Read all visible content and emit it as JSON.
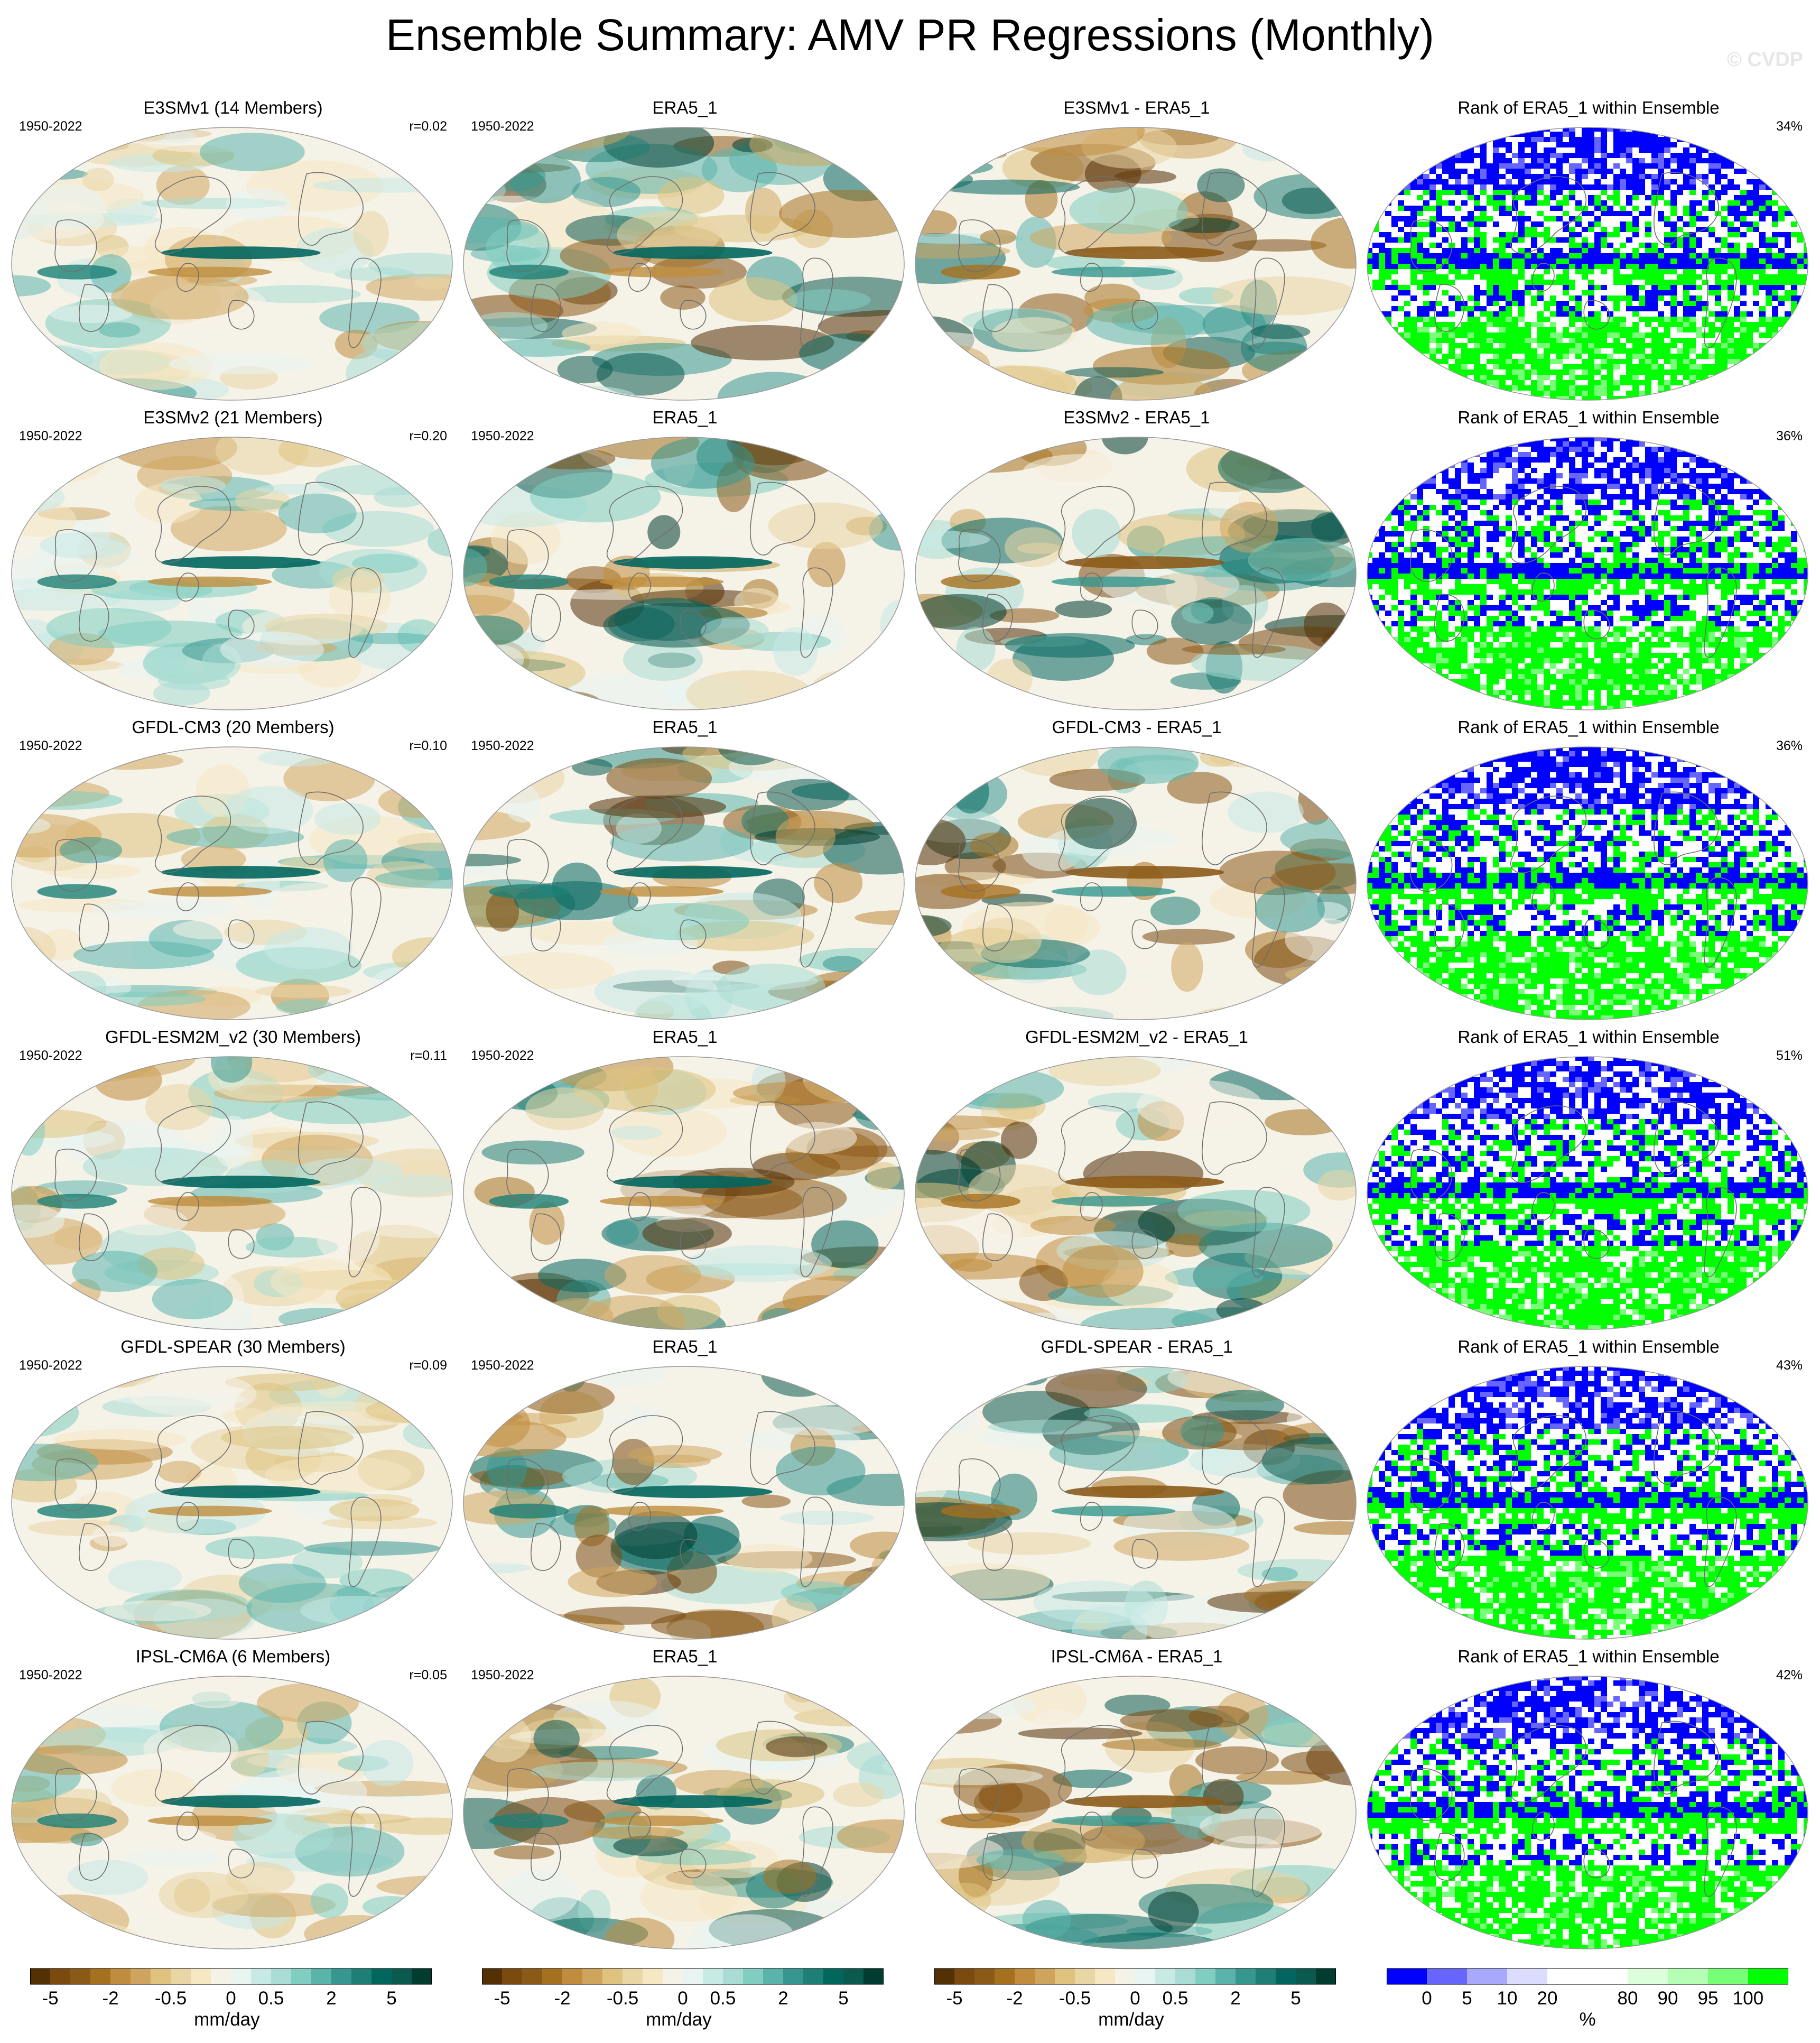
{
  "title": "Ensemble Summary: AMV PR Regressions (Monthly)",
  "watermark": "© CVDP",
  "rows": [
    {
      "model_title": "E3SMv1 (14 Members)",
      "years": "1950-2022",
      "corr": "r=0.02",
      "obs_title": "ERA5_1",
      "obs_years": "1950-2022",
      "diff_title": "E3SMv1 - ERA5_1",
      "rank_title": "Rank of ERA5_1 within Ensemble",
      "rank_pct": "34%"
    },
    {
      "model_title": "E3SMv2 (21 Members)",
      "years": "1950-2022",
      "corr": "r=0.20",
      "obs_title": "ERA5_1",
      "obs_years": "1950-2022",
      "diff_title": "E3SMv2 - ERA5_1",
      "rank_title": "Rank of ERA5_1 within Ensemble",
      "rank_pct": "36%"
    },
    {
      "model_title": "GFDL-CM3 (20 Members)",
      "years": "1950-2022",
      "corr": "r=0.10",
      "obs_title": "ERA5_1",
      "obs_years": "1950-2022",
      "diff_title": "GFDL-CM3 - ERA5_1",
      "rank_title": "Rank of ERA5_1 within Ensemble",
      "rank_pct": "36%"
    },
    {
      "model_title": "GFDL-ESM2M_v2 (30 Members)",
      "years": "1950-2022",
      "corr": "r=0.11",
      "obs_title": "ERA5_1",
      "obs_years": "1950-2022",
      "diff_title": "GFDL-ESM2M_v2 - ERA5_1",
      "rank_title": "Rank of ERA5_1 within Ensemble",
      "rank_pct": "51%"
    },
    {
      "model_title": "GFDL-SPEAR (30 Members)",
      "years": "1950-2022",
      "corr": "r=0.09",
      "obs_title": "ERA5_1",
      "obs_years": "1950-2022",
      "diff_title": "GFDL-SPEAR - ERA5_1",
      "rank_title": "Rank of ERA5_1 within Ensemble",
      "rank_pct": "43%"
    },
    {
      "model_title": "IPSL-CM6A (6 Members)",
      "years": "1950-2022",
      "corr": "r=0.05",
      "obs_title": "ERA5_1",
      "obs_years": "1950-2022",
      "diff_title": "IPSL-CM6A - ERA5_1",
      "rank_title": "Rank of ERA5_1 within Ensemble",
      "rank_pct": "42%"
    }
  ],
  "colorbars": {
    "diverging": {
      "colors": [
        "#543005",
        "#7a4a0f",
        "#8c5a17",
        "#a6711f",
        "#bf8d3d",
        "#cfa55e",
        "#dfc27d",
        "#ead6a4",
        "#f6e8c3",
        "#f5f2e8",
        "#e8f4f2",
        "#c7eae5",
        "#a8dcd4",
        "#80cdc1",
        "#5ab4ac",
        "#35978f",
        "#1d7f76",
        "#01665e",
        "#0b5a50",
        "#003c30"
      ],
      "tick_labels": [
        "-5",
        "-2",
        "-0.5",
        "0",
        "0.5",
        "2",
        "5"
      ],
      "unit": "mm/day"
    },
    "rank": {
      "colors": [
        "#0000ff",
        "#6666ff",
        "#a8a8ff",
        "#dcdcff",
        "#ffffff",
        "#ffffff",
        "#dcffdc",
        "#b4ffb4",
        "#78ff78",
        "#00ff00"
      ],
      "tick_labels": [
        "0",
        "5",
        "10",
        "20",
        "80",
        "90",
        "95",
        "100"
      ],
      "unit": "%"
    }
  }
}
